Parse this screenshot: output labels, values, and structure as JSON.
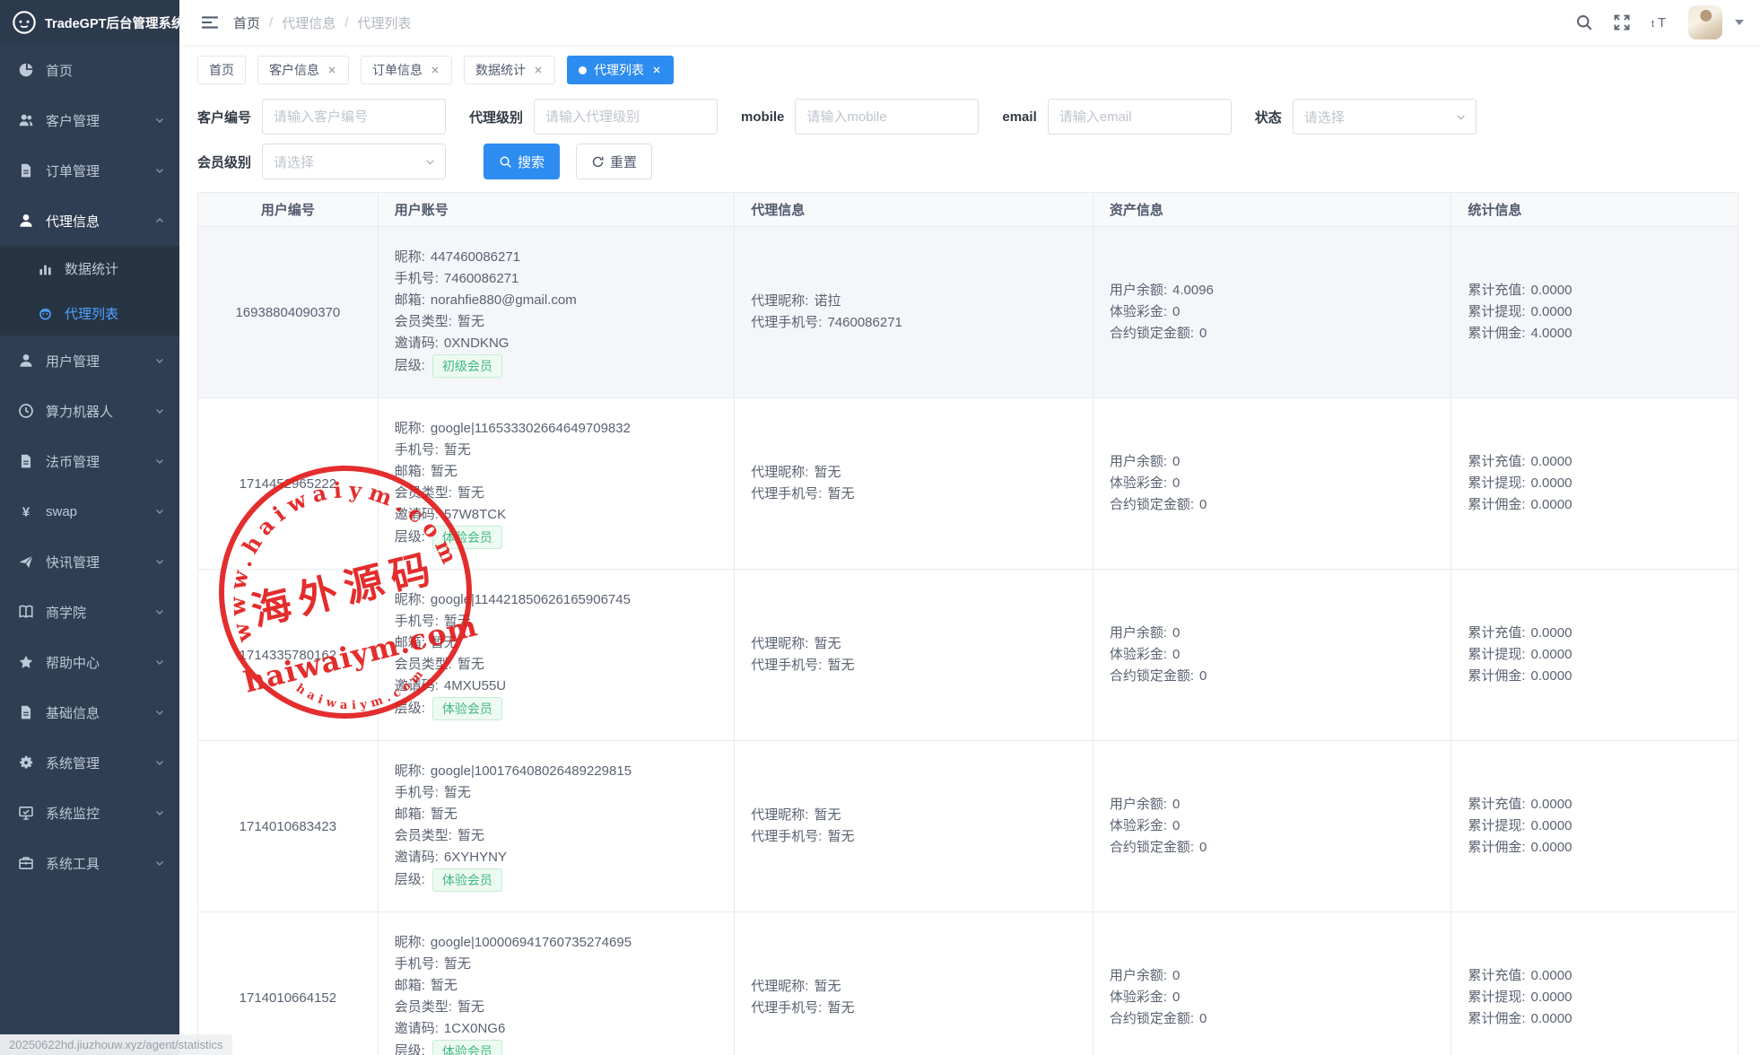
{
  "app_title": "TradeGPT后台管理系统",
  "topbar": {
    "breadcrumb": [
      "首页",
      "代理信息",
      "代理列表"
    ],
    "icons": [
      "search-icon",
      "fullscreen-icon",
      "font-size-icon",
      "avatar",
      "caret-down-icon"
    ]
  },
  "tabs": [
    {
      "key": "home",
      "label": "首页",
      "closable": false,
      "active": false
    },
    {
      "key": "customer-info",
      "label": "客户信息",
      "closable": true,
      "active": false
    },
    {
      "key": "order-info",
      "label": "订单信息",
      "closable": true,
      "active": false
    },
    {
      "key": "data-stats",
      "label": "数据统计",
      "closable": true,
      "active": false
    },
    {
      "key": "agent-list",
      "label": "代理列表",
      "closable": true,
      "active": true
    }
  ],
  "sidebar": [
    {
      "key": "home",
      "icon": "dashboard-icon",
      "label": "首页",
      "chevron": false
    },
    {
      "key": "customer-mgmt",
      "icon": "users-icon",
      "label": "客户管理",
      "chevron": true
    },
    {
      "key": "order-mgmt",
      "icon": "document-icon",
      "label": "订单管理",
      "chevron": true
    },
    {
      "key": "agent-info",
      "icon": "user-icon",
      "label": "代理信息",
      "chevron": true,
      "expanded": true,
      "active": true,
      "children": [
        {
          "key": "data-statistics",
          "icon": "chart-icon",
          "label": "数据统计",
          "active": false
        },
        {
          "key": "agent-list",
          "icon": "robot-icon",
          "label": "代理列表",
          "active": true
        }
      ]
    },
    {
      "key": "user-mgmt",
      "icon": "user-icon",
      "label": "用户管理",
      "chevron": true
    },
    {
      "key": "hashrate-robot",
      "icon": "clock-icon",
      "label": "算力机器人",
      "chevron": true
    },
    {
      "key": "fiat-mgmt",
      "icon": "document-icon",
      "label": "法币管理",
      "chevron": true
    },
    {
      "key": "swap",
      "icon": "yen-icon",
      "label": "swap",
      "chevron": true
    },
    {
      "key": "news-mgmt",
      "icon": "plane-icon",
      "label": "快讯管理",
      "chevron": true
    },
    {
      "key": "academy",
      "icon": "book-icon",
      "label": "商学院",
      "chevron": true
    },
    {
      "key": "help-center",
      "icon": "star-icon",
      "label": "帮助中心",
      "chevron": true
    },
    {
      "key": "basic-info",
      "icon": "document-icon",
      "label": "基础信息",
      "chevron": true
    },
    {
      "key": "system-mgmt",
      "icon": "gear-icon",
      "label": "系统管理",
      "chevron": true
    },
    {
      "key": "system-monitor",
      "icon": "monitor-icon",
      "label": "系统监控",
      "chevron": true
    },
    {
      "key": "system-tools",
      "icon": "briefcase-icon",
      "label": "系统工具",
      "chevron": true
    }
  ],
  "filters": {
    "fields": [
      {
        "key": "customer-no",
        "label": "客户编号",
        "type": "input",
        "placeholder": "请输入客户编号",
        "value": ""
      },
      {
        "key": "agent-level",
        "label": "代理级别",
        "type": "input",
        "placeholder": "请输入代理级别",
        "value": ""
      },
      {
        "key": "mobile",
        "label": "mobile",
        "type": "input",
        "placeholder": "请输入mobile",
        "value": ""
      },
      {
        "key": "email",
        "label": "email",
        "type": "input",
        "placeholder": "请输入email",
        "value": ""
      },
      {
        "key": "status",
        "label": "状态",
        "type": "select",
        "placeholder": "请选择",
        "value": ""
      },
      {
        "key": "member-level",
        "label": "会员级别",
        "type": "select",
        "placeholder": "请选择",
        "value": ""
      }
    ],
    "search_label": "搜索",
    "reset_label": "重置"
  },
  "table": {
    "headers": [
      "用户编号",
      "用户账号",
      "代理信息",
      "资产信息",
      "统计信息"
    ],
    "level_label": "层级",
    "rows": [
      {
        "user_id": "16938804090370",
        "highlighted": true,
        "account": [
          {
            "label": "昵称",
            "value": "447460086271"
          },
          {
            "label": "手机号",
            "value": "7460086271"
          },
          {
            "label": "邮箱",
            "value": "norahfie880@gmail.com"
          },
          {
            "label": "会员类型",
            "value": "暂无"
          },
          {
            "label": "邀请码",
            "value": "0XNDKNG"
          }
        ],
        "level": "初级会员",
        "agent": [
          {
            "label": "代理昵称",
            "value": "诺拉"
          },
          {
            "label": "代理手机号",
            "value": "7460086271"
          }
        ],
        "assets": [
          {
            "label": "用户余额",
            "value": "4.0096"
          },
          {
            "label": "体验彩金",
            "value": "0"
          },
          {
            "label": "合约锁定金额",
            "value": "0"
          }
        ],
        "stats": [
          {
            "label": "累计充值",
            "value": "0.0000"
          },
          {
            "label": "累计提现",
            "value": "0.0000"
          },
          {
            "label": "累计佣金",
            "value": "4.0000"
          }
        ]
      },
      {
        "user_id": "1714452965222",
        "highlighted": false,
        "account": [
          {
            "label": "昵称",
            "value": "google|116533302664649709832"
          },
          {
            "label": "手机号",
            "value": "暂无"
          },
          {
            "label": "邮箱",
            "value": "暂无"
          },
          {
            "label": "会员类型",
            "value": "暂无"
          },
          {
            "label": "邀请码",
            "value": "57W8TCK"
          }
        ],
        "level": "体验会员",
        "agent": [
          {
            "label": "代理昵称",
            "value": "暂无"
          },
          {
            "label": "代理手机号",
            "value": "暂无"
          }
        ],
        "assets": [
          {
            "label": "用户余额",
            "value": "0"
          },
          {
            "label": "体验彩金",
            "value": "0"
          },
          {
            "label": "合约锁定金额",
            "value": "0"
          }
        ],
        "stats": [
          {
            "label": "累计充值",
            "value": "0.0000"
          },
          {
            "label": "累计提现",
            "value": "0.0000"
          },
          {
            "label": "累计佣金",
            "value": "0.0000"
          }
        ]
      },
      {
        "user_id": "1714335780162",
        "highlighted": false,
        "account": [
          {
            "label": "昵称",
            "value": "google|114421850626165906745"
          },
          {
            "label": "手机号",
            "value": "暂无"
          },
          {
            "label": "邮箱",
            "value": "暂无"
          },
          {
            "label": "会员类型",
            "value": "暂无"
          },
          {
            "label": "邀请码",
            "value": "4MXU55U"
          }
        ],
        "level": "体验会员",
        "agent": [
          {
            "label": "代理昵称",
            "value": "暂无"
          },
          {
            "label": "代理手机号",
            "value": "暂无"
          }
        ],
        "assets": [
          {
            "label": "用户余额",
            "value": "0"
          },
          {
            "label": "体验彩金",
            "value": "0"
          },
          {
            "label": "合约锁定金额",
            "value": "0"
          }
        ],
        "stats": [
          {
            "label": "累计充值",
            "value": "0.0000"
          },
          {
            "label": "累计提现",
            "value": "0.0000"
          },
          {
            "label": "累计佣金",
            "value": "0.0000"
          }
        ]
      },
      {
        "user_id": "1714010683423",
        "highlighted": false,
        "account": [
          {
            "label": "昵称",
            "value": "google|100176408026489229815"
          },
          {
            "label": "手机号",
            "value": "暂无"
          },
          {
            "label": "邮箱",
            "value": "暂无"
          },
          {
            "label": "会员类型",
            "value": "暂无"
          },
          {
            "label": "邀请码",
            "value": "6XYHYNY"
          }
        ],
        "level": "体验会员",
        "agent": [
          {
            "label": "代理昵称",
            "value": "暂无"
          },
          {
            "label": "代理手机号",
            "value": "暂无"
          }
        ],
        "assets": [
          {
            "label": "用户余额",
            "value": "0"
          },
          {
            "label": "体验彩金",
            "value": "0"
          },
          {
            "label": "合约锁定金额",
            "value": "0"
          }
        ],
        "stats": [
          {
            "label": "累计充值",
            "value": "0.0000"
          },
          {
            "label": "累计提现",
            "value": "0.0000"
          },
          {
            "label": "累计佣金",
            "value": "0.0000"
          }
        ]
      },
      {
        "user_id": "1714010664152",
        "highlighted": false,
        "account": [
          {
            "label": "昵称",
            "value": "google|100006941760735274695"
          },
          {
            "label": "手机号",
            "value": "暂无"
          },
          {
            "label": "邮箱",
            "value": "暂无"
          },
          {
            "label": "会员类型",
            "value": "暂无"
          },
          {
            "label": "邀请码",
            "value": "1CX0NG6"
          }
        ],
        "level": "体验会员",
        "agent": [
          {
            "label": "代理昵称",
            "value": "暂无"
          },
          {
            "label": "代理手机号",
            "value": "暂无"
          }
        ],
        "assets": [
          {
            "label": "用户余额",
            "value": "0"
          },
          {
            "label": "体验彩金",
            "value": "0"
          },
          {
            "label": "合约锁定金额",
            "value": "0"
          }
        ],
        "stats": [
          {
            "label": "累计充值",
            "value": "0.0000"
          },
          {
            "label": "累计提现",
            "value": "0.0000"
          },
          {
            "label": "累计佣金",
            "value": "0.0000"
          }
        ]
      }
    ]
  },
  "watermark": {
    "arc_text": "www.haiwaiym.com",
    "cn_text": "海外源码",
    "domain_text": "haiwaiym.com",
    "bottom_arc_text": "haiwaiym.com",
    "color": "#e21717"
  },
  "statusbar_url": "20250622hd.jiuzhouw.xyz/agent/statistics",
  "colors": {
    "accent": "#2d8cf0",
    "sidebar_bg": "#2f3e52",
    "sidebar_active_link": "#4da3ff",
    "badge_green": "#42b983",
    "watermark_red": "#e21717"
  }
}
